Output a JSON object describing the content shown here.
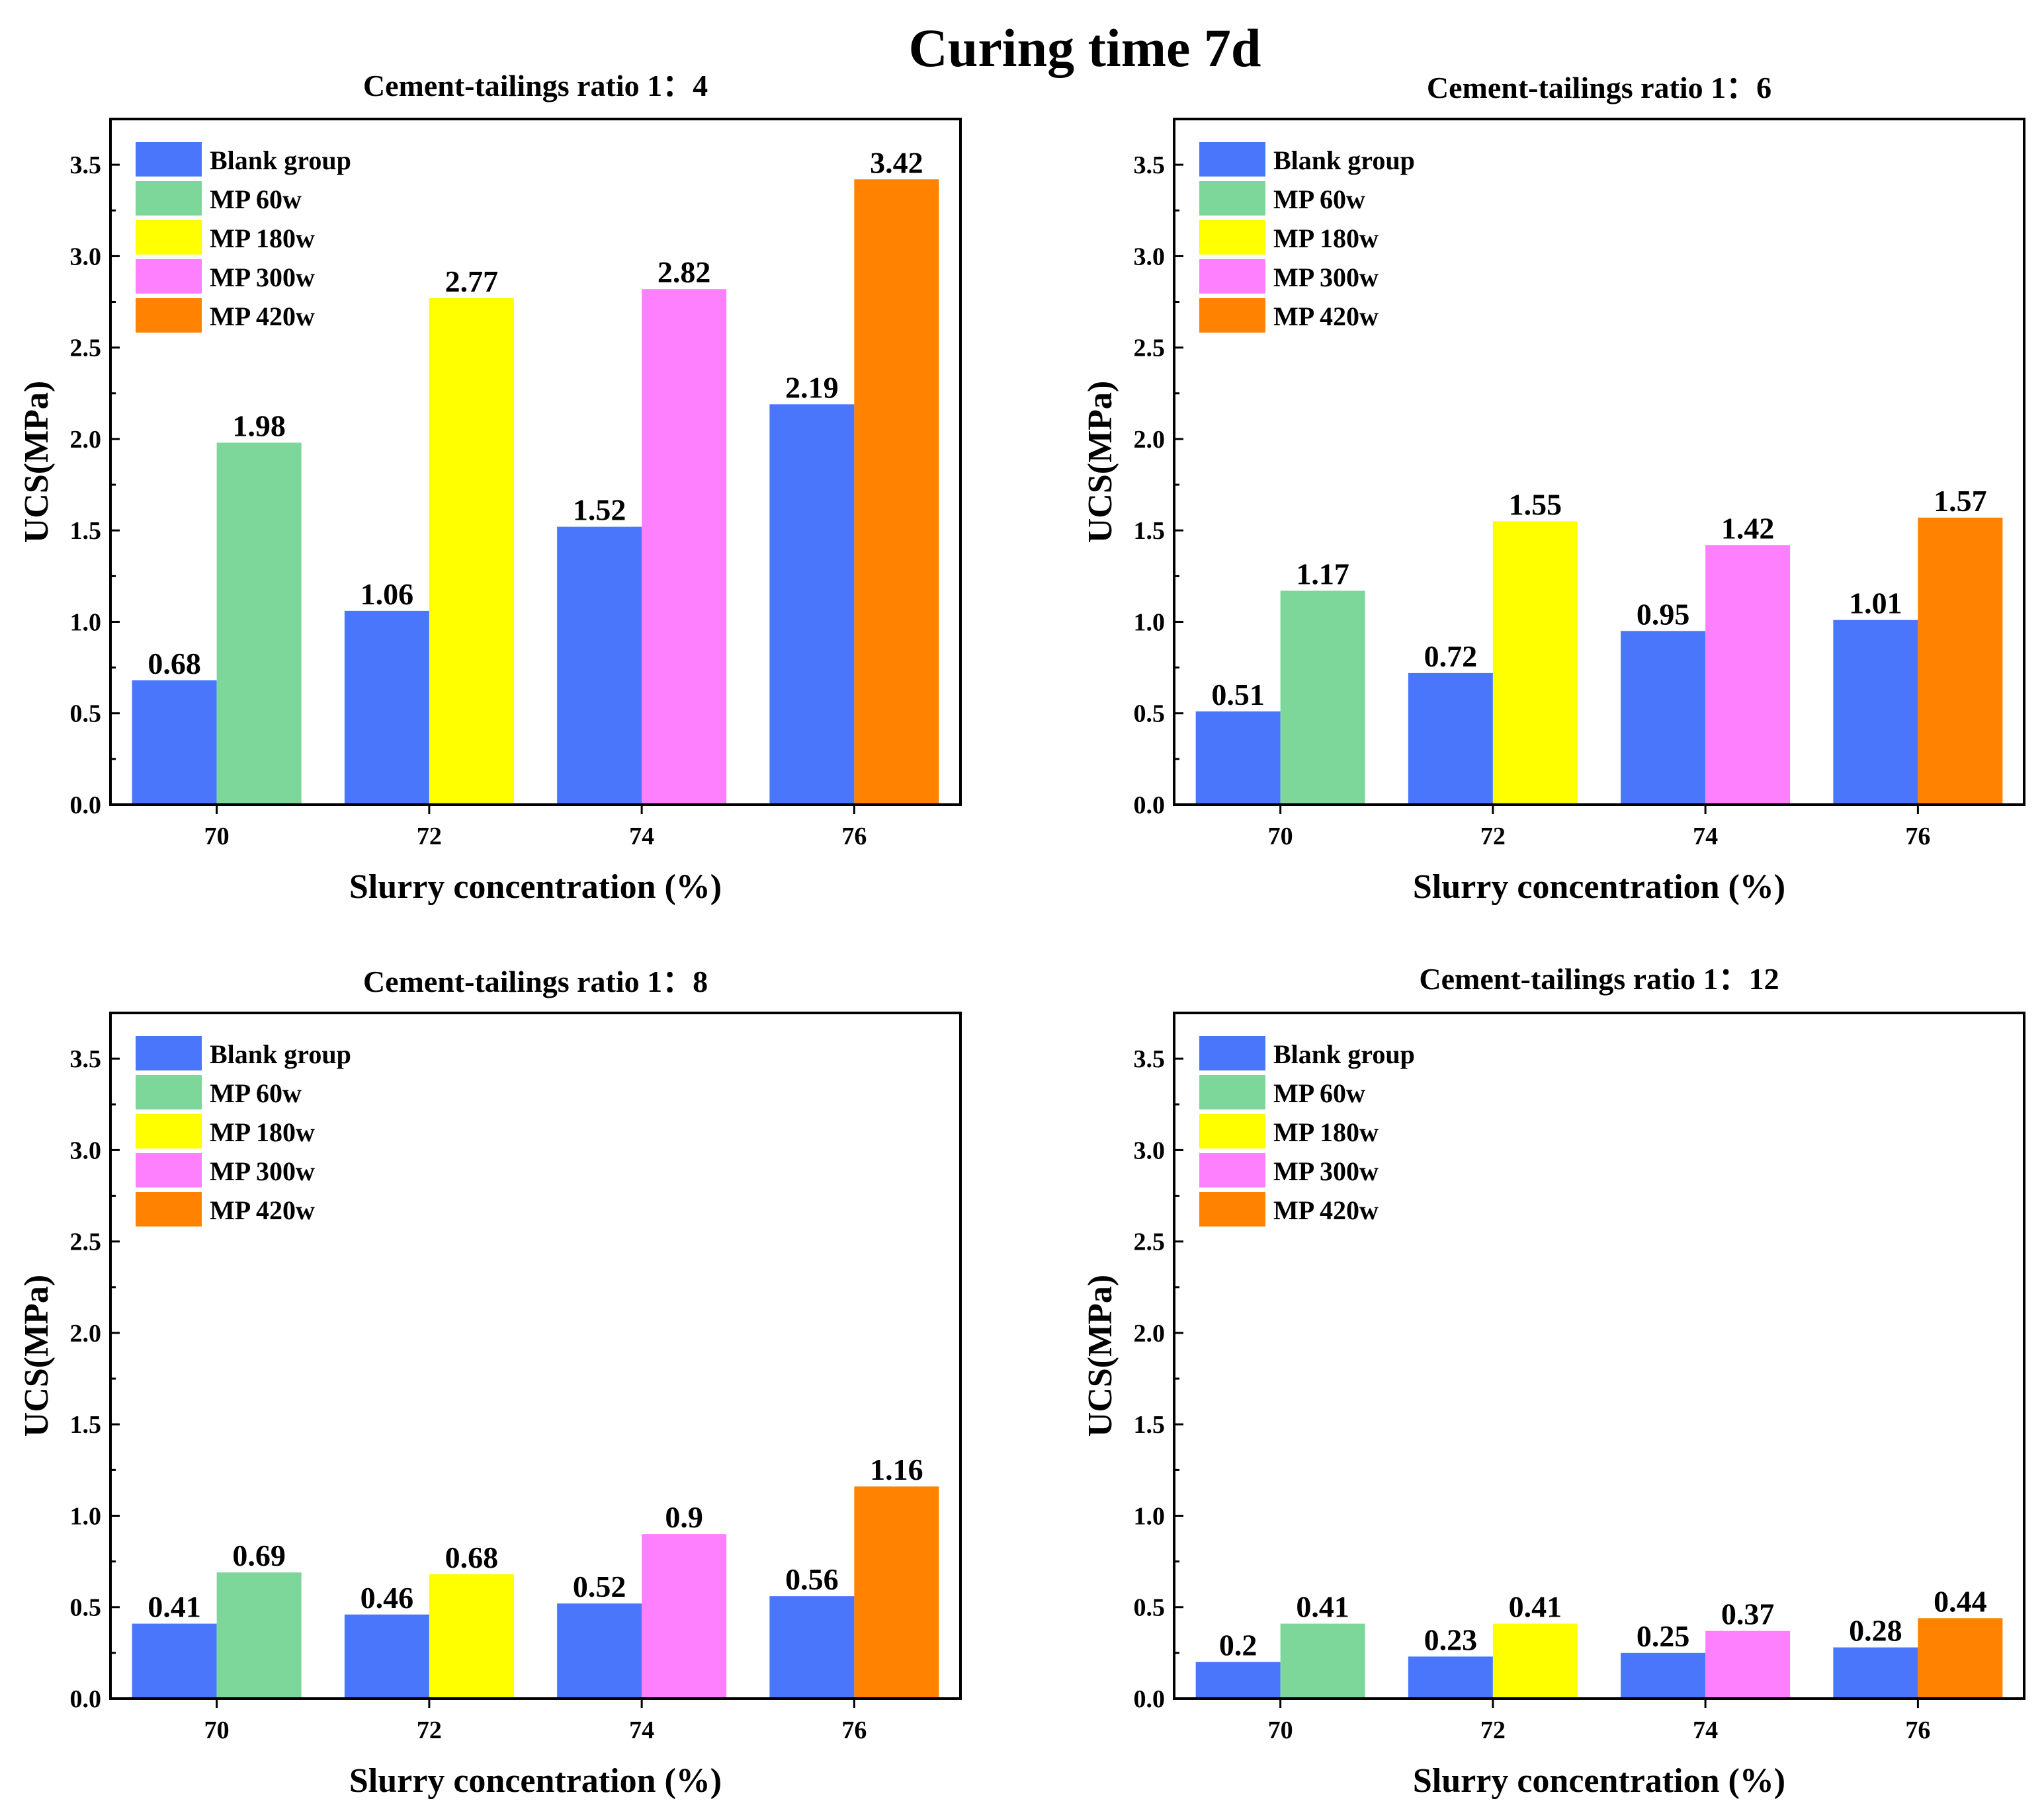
{
  "figure_title": "Curing time 7d",
  "colors": {
    "Blank group": "#4a76fb",
    "MP 60w": "#7ed79a",
    "MP 180w": "#ffff00",
    "MP 300w": "#ff80fe",
    "MP 420w": "#ff8300"
  },
  "chart_data": [
    {
      "type": "bar",
      "title": "Cement-tailings ratio 1：4",
      "xlabel": "Slurry concentration (%)",
      "ylabel": "UCS(MPa)",
      "ylim": [
        0,
        3.75
      ],
      "yticks": [
        "0.0",
        "0.5",
        "1.0",
        "1.5",
        "2.0",
        "2.5",
        "3.0",
        "3.5"
      ],
      "categories": [
        "70",
        "72",
        "74",
        "76"
      ],
      "legend": [
        "Blank group",
        "MP 60w",
        "MP 180w",
        "MP 300w",
        "MP 420w"
      ],
      "legend_position": "top-left",
      "bars": [
        {
          "category": "70",
          "series": "Blank group",
          "value": 0.68,
          "label": "0.68"
        },
        {
          "category": "70",
          "series": "MP 60w",
          "value": 1.98,
          "label": "1.98"
        },
        {
          "category": "72",
          "series": "Blank group",
          "value": 1.06,
          "label": "1.06"
        },
        {
          "category": "72",
          "series": "MP 180w",
          "value": 2.77,
          "label": "2.77"
        },
        {
          "category": "74",
          "series": "Blank group",
          "value": 1.52,
          "label": "1.52"
        },
        {
          "category": "74",
          "series": "MP 300w",
          "value": 2.82,
          "label": "2.82"
        },
        {
          "category": "76",
          "series": "Blank group",
          "value": 2.19,
          "label": "2.19"
        },
        {
          "category": "76",
          "series": "MP 420w",
          "value": 3.42,
          "label": "3.42"
        }
      ]
    },
    {
      "type": "bar",
      "title": "Cement-tailings ratio 1：6",
      "xlabel": "Slurry concentration (%)",
      "ylabel": "UCS(MPa)",
      "ylim": [
        0,
        3.75
      ],
      "yticks": [
        "0.0",
        "0.5",
        "1.0",
        "1.5",
        "2.0",
        "2.5",
        "3.0",
        "3.5"
      ],
      "categories": [
        "70",
        "72",
        "74",
        "76"
      ],
      "legend": [
        "Blank group",
        "MP 60w",
        "MP 180w",
        "MP 300w",
        "MP 420w"
      ],
      "legend_position": "top-left",
      "bars": [
        {
          "category": "70",
          "series": "Blank group",
          "value": 0.51,
          "label": "0.51"
        },
        {
          "category": "70",
          "series": "MP 60w",
          "value": 1.17,
          "label": "1.17"
        },
        {
          "category": "72",
          "series": "Blank group",
          "value": 0.72,
          "label": "0.72"
        },
        {
          "category": "72",
          "series": "MP 180w",
          "value": 1.55,
          "label": "1.55"
        },
        {
          "category": "74",
          "series": "Blank group",
          "value": 0.95,
          "label": "0.95"
        },
        {
          "category": "74",
          "series": "MP 300w",
          "value": 1.42,
          "label": "1.42"
        },
        {
          "category": "76",
          "series": "Blank group",
          "value": 1.01,
          "label": "1.01"
        },
        {
          "category": "76",
          "series": "MP 420w",
          "value": 1.57,
          "label": "1.57"
        }
      ]
    },
    {
      "type": "bar",
      "title": "Cement-tailings ratio 1：8",
      "xlabel": "Slurry concentration (%)",
      "ylabel": "UCS(MPa)",
      "ylim": [
        0,
        3.75
      ],
      "yticks": [
        "0.0",
        "0.5",
        "1.0",
        "1.5",
        "2.0",
        "2.5",
        "3.0",
        "3.5"
      ],
      "categories": [
        "70",
        "72",
        "74",
        "76"
      ],
      "legend": [
        "Blank group",
        "MP 60w",
        "MP 180w",
        "MP 300w",
        "MP 420w"
      ],
      "legend_position": "top-left",
      "bars": [
        {
          "category": "70",
          "series": "Blank group",
          "value": 0.41,
          "label": "0.41"
        },
        {
          "category": "70",
          "series": "MP 60w",
          "value": 0.69,
          "label": "0.69"
        },
        {
          "category": "72",
          "series": "Blank group",
          "value": 0.46,
          "label": "0.46"
        },
        {
          "category": "72",
          "series": "MP 180w",
          "value": 0.68,
          "label": "0.68"
        },
        {
          "category": "74",
          "series": "Blank group",
          "value": 0.52,
          "label": "0.52"
        },
        {
          "category": "74",
          "series": "MP 300w",
          "value": 0.9,
          "label": "0.9"
        },
        {
          "category": "76",
          "series": "Blank group",
          "value": 0.56,
          "label": "0.56"
        },
        {
          "category": "76",
          "series": "MP 420w",
          "value": 1.16,
          "label": "1.16"
        }
      ]
    },
    {
      "type": "bar",
      "title": "Cement-tailings ratio 1：12",
      "xlabel": "Slurry concentration (%)",
      "ylabel": "UCS(MPa)",
      "ylim": [
        0,
        3.75
      ],
      "yticks": [
        "0.0",
        "0.5",
        "1.0",
        "1.5",
        "2.0",
        "2.5",
        "3.0",
        "3.5"
      ],
      "categories": [
        "70",
        "72",
        "74",
        "76"
      ],
      "legend": [
        "Blank group",
        "MP 60w",
        "MP 180w",
        "MP 300w",
        "MP 420w"
      ],
      "legend_position": "top-left",
      "bars": [
        {
          "category": "70",
          "series": "Blank group",
          "value": 0.2,
          "label": "0.2"
        },
        {
          "category": "70",
          "series": "MP 60w",
          "value": 0.41,
          "label": "0.41"
        },
        {
          "category": "72",
          "series": "Blank group",
          "value": 0.23,
          "label": "0.23"
        },
        {
          "category": "72",
          "series": "MP 180w",
          "value": 0.41,
          "label": "0.41"
        },
        {
          "category": "74",
          "series": "Blank group",
          "value": 0.25,
          "label": "0.25"
        },
        {
          "category": "74",
          "series": "MP 300w",
          "value": 0.37,
          "label": "0.37"
        },
        {
          "category": "76",
          "series": "Blank group",
          "value": 0.28,
          "label": "0.28"
        },
        {
          "category": "76",
          "series": "MP 420w",
          "value": 0.44,
          "label": "0.44"
        }
      ]
    }
  ]
}
